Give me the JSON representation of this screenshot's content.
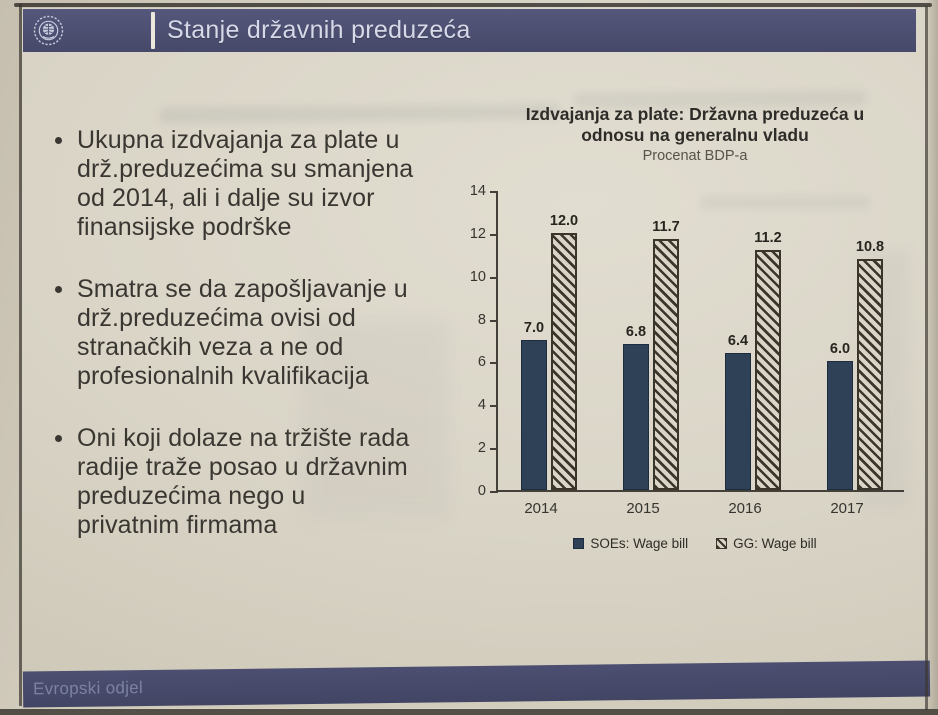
{
  "header": {
    "title": "Stanje državnih preduzeća",
    "logo": "imf-seal-icon"
  },
  "bullets": [
    "Ukupna izdvajanja za plate u\ndrž.preduzećima su smanjena\nod 2014, ali i dalje su izvor\nfinansijske podrške",
    "Smatra se da zapošljavanje u\ndrž.preduzećima ovisi od\nstranačkih veza a ne od\nprofesionalnih kvalifikacija",
    "Oni koji dolaze na tržište rada\nradije traže posao u državnim\npreduzećima nego u\nprivatnim firmama"
  ],
  "chart_data": {
    "type": "bar",
    "title": "Izdvajanja za plate: Državna preduzeća u\nodnosu na generalnu vladu",
    "subtitle": "Procenat BDP-a",
    "categories": [
      "2014",
      "2015",
      "2016",
      "2017"
    ],
    "series": [
      {
        "name": "SOEs: Wage bill",
        "style": "solid",
        "color": "#2e4156",
        "values": [
          7.0,
          6.8,
          6.4,
          6.0
        ]
      },
      {
        "name": "GG: Wage bill",
        "style": "hatched",
        "color": "#3b352c",
        "values": [
          12.0,
          11.7,
          11.2,
          10.8
        ]
      }
    ],
    "ylim": [
      0,
      14
    ],
    "ytick_step": 2,
    "grid": false,
    "legend_position": "bottom",
    "value_labels": true,
    "value_label_decimals": 1
  },
  "footer": {
    "label": "Evropski odjel"
  },
  "colors": {
    "header_bg": "#4b4e6e",
    "slide_bg": "#d9d4c6",
    "bar_solid": "#2e4156",
    "hatch_dark": "#3b352c",
    "body_text": "#3a3732",
    "header_text": "#d7d9e8",
    "footer_text": "#7c81a4"
  }
}
